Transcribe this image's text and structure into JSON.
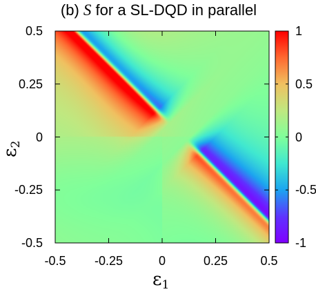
{
  "chart_data": {
    "type": "heatmap",
    "title": {
      "prefix": "(b) ",
      "symbol": "S",
      "suffix": " for a SL-DQD in parallel"
    },
    "xlabel": {
      "base": "ε",
      "sub": "1"
    },
    "ylabel": {
      "base": "ε",
      "sub": "2"
    },
    "xlim": [
      -0.5,
      0.5
    ],
    "ylim": [
      -0.5,
      0.5
    ],
    "xticks": [
      "-0.5",
      "-0.25",
      "0",
      "0.25",
      "0.5"
    ],
    "yticks": [
      "0.5",
      "0.25",
      "0",
      "-0.25",
      "-0.5"
    ],
    "xtick_values": [
      -0.5,
      -0.25,
      0,
      0.25,
      0.5
    ],
    "ytick_values": [
      0.5,
      0.25,
      0,
      -0.25,
      -0.5
    ],
    "colorbar": {
      "range": [
        -1,
        1
      ],
      "ticks": [
        "1",
        "0.5",
        "0",
        "-0.5",
        "-1"
      ],
      "tick_values": [
        1,
        0.5,
        0,
        -0.5,
        -1
      ],
      "palette": "rainbow (purple-blue-cyan-green-yellow-orange-red)"
    },
    "grid": false,
    "features": [
      {
        "description": "sharp anti-diagonal line from top-left to bottom-right, red (~1) on lower-left side and purple (~-1) on upper-right side, interrupted near the origin"
      }
    ]
  }
}
